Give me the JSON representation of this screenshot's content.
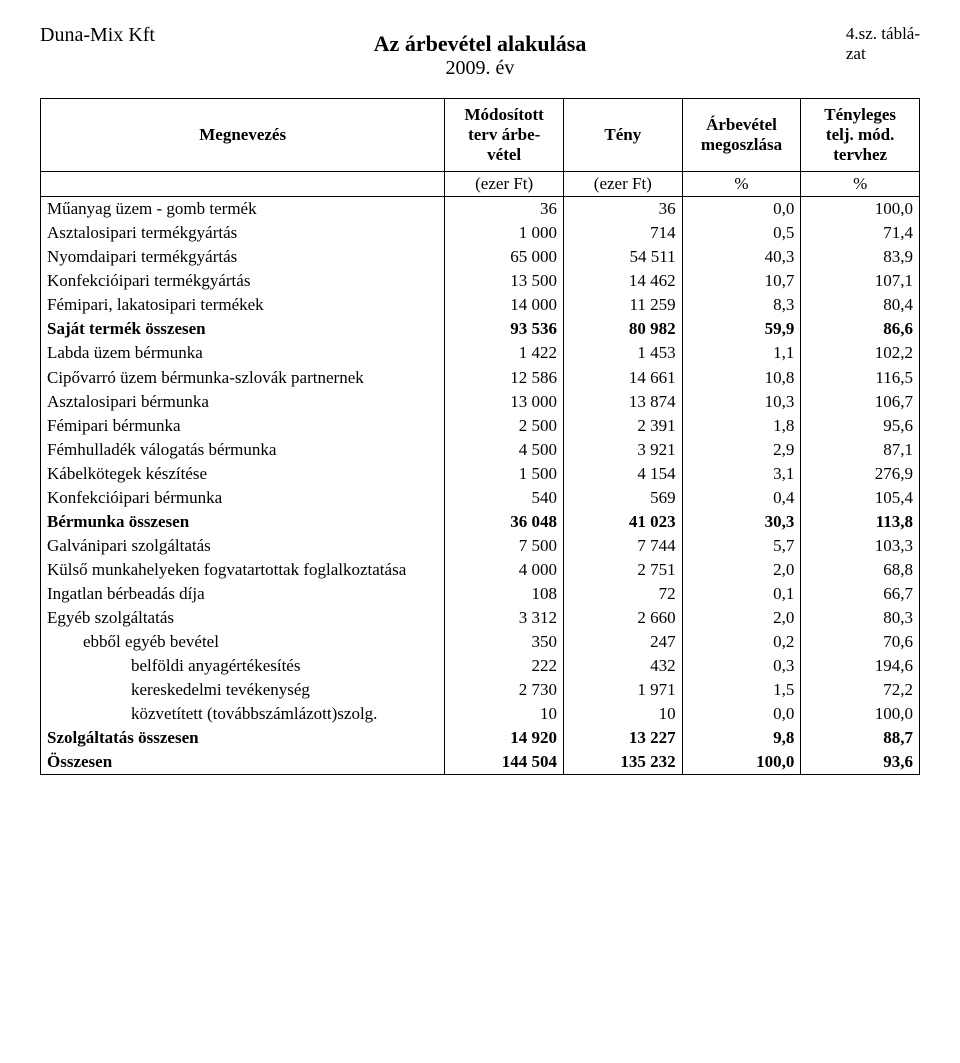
{
  "header": {
    "company": "Duna-Mix Kft",
    "title": "Az árbevétel alakulása",
    "subtitle": "2009. év",
    "corner_line1": "4.sz. táblá-",
    "corner_line2": "zat"
  },
  "table": {
    "columns": {
      "name": "Megnevezés",
      "plan_l1": "Módosított",
      "plan_l2": "terv árbe-",
      "plan_l3": "vétel",
      "fact": "Tény",
      "share_l1": "Árbevétel",
      "share_l2": "megoszlása",
      "ratio_l1": "Tényleges",
      "ratio_l2": "telj. mód.",
      "ratio_l3": "tervhez"
    },
    "units": {
      "plan": "(ezer Ft)",
      "fact": "(ezer Ft)",
      "share": "%",
      "ratio": "%"
    },
    "rows": [
      {
        "name": "Műanyag üzem - gomb termék",
        "plan": "36",
        "fact": "36",
        "share": "0,0",
        "ratio": "100,0"
      },
      {
        "name": "Asztalosipari termékgyártás",
        "plan": "1 000",
        "fact": "714",
        "share": "0,5",
        "ratio": "71,4"
      },
      {
        "name": "Nyomdaipari termékgyártás",
        "plan": "65 000",
        "fact": "54 511",
        "share": "40,3",
        "ratio": "83,9"
      },
      {
        "name": "Konfekcióipari termékgyártás",
        "plan": "13 500",
        "fact": "14 462",
        "share": "10,7",
        "ratio": "107,1"
      },
      {
        "name": "Fémipari, lakatosipari termékek",
        "plan": "14 000",
        "fact": "11 259",
        "share": "8,3",
        "ratio": "80,4"
      },
      {
        "name": "Saját termék összesen",
        "plan": "93 536",
        "fact": "80 982",
        "share": "59,9",
        "ratio": "86,6",
        "bold": true
      },
      {
        "name": "Labda üzem bérmunka",
        "plan": "1 422",
        "fact": "1 453",
        "share": "1,1",
        "ratio": "102,2"
      },
      {
        "name": "Cipővarró üzem bérmunka-szlovák partnernek",
        "plan": "12 586",
        "fact": "14 661",
        "share": "10,8",
        "ratio": "116,5"
      },
      {
        "name": "Asztalosipari bérmunka",
        "plan": "13 000",
        "fact": "13 874",
        "share": "10,3",
        "ratio": "106,7"
      },
      {
        "name": "Fémipari bérmunka",
        "plan": "2 500",
        "fact": "2 391",
        "share": "1,8",
        "ratio": "95,6"
      },
      {
        "name": "Fémhulladék válogatás bérmunka",
        "plan": "4 500",
        "fact": "3 921",
        "share": "2,9",
        "ratio": "87,1"
      },
      {
        "name": "Kábelkötegek készítése",
        "plan": "1 500",
        "fact": "4 154",
        "share": "3,1",
        "ratio": "276,9"
      },
      {
        "name": "Konfekcióipari bérmunka",
        "plan": "540",
        "fact": "569",
        "share": "0,4",
        "ratio": "105,4"
      },
      {
        "name": "Bérmunka összesen",
        "plan": "36 048",
        "fact": "41 023",
        "share": "30,3",
        "ratio": "113,8",
        "bold": true
      },
      {
        "name": "Galvánipari szolgáltatás",
        "plan": "7 500",
        "fact": "7 744",
        "share": "5,7",
        "ratio": "103,3"
      },
      {
        "name": "Külső munkahelyeken fogvatartottak foglalkoztatása",
        "plan": "4 000",
        "fact": "2 751",
        "share": "2,0",
        "ratio": "68,8",
        "two_line": true
      },
      {
        "name": "Ingatlan bérbeadás díja",
        "plan": "108",
        "fact": "72",
        "share": "0,1",
        "ratio": "66,7"
      },
      {
        "name": "Egyéb szolgáltatás",
        "plan": "3 312",
        "fact": "2 660",
        "share": "2,0",
        "ratio": "80,3"
      },
      {
        "name": "ebből egyéb bevétel",
        "plan": "350",
        "fact": "247",
        "share": "0,2",
        "ratio": "70,6",
        "indent": 1
      },
      {
        "name": "belföldi anyagértékesítés",
        "plan": "222",
        "fact": "432",
        "share": "0,3",
        "ratio": "194,6",
        "indent": 2
      },
      {
        "name": "kereskedelmi tevékenység",
        "plan": "2 730",
        "fact": "1 971",
        "share": "1,5",
        "ratio": "72,2",
        "indent": 2
      },
      {
        "name": "közvetített (továbbszámlázott)szolg.",
        "plan": "10",
        "fact": "10",
        "share": "0,0",
        "ratio": "100,0",
        "indent": 2,
        "two_line": true,
        "ratio_top": true
      },
      {
        "name": "Szolgáltatás összesen",
        "plan": "14 920",
        "fact": "13 227",
        "share": "9,8",
        "ratio": "88,7",
        "bold": true
      },
      {
        "name": "Összesen",
        "plan": "144 504",
        "fact": "135 232",
        "share": "100,0",
        "ratio": "93,6",
        "bold": true
      }
    ]
  }
}
